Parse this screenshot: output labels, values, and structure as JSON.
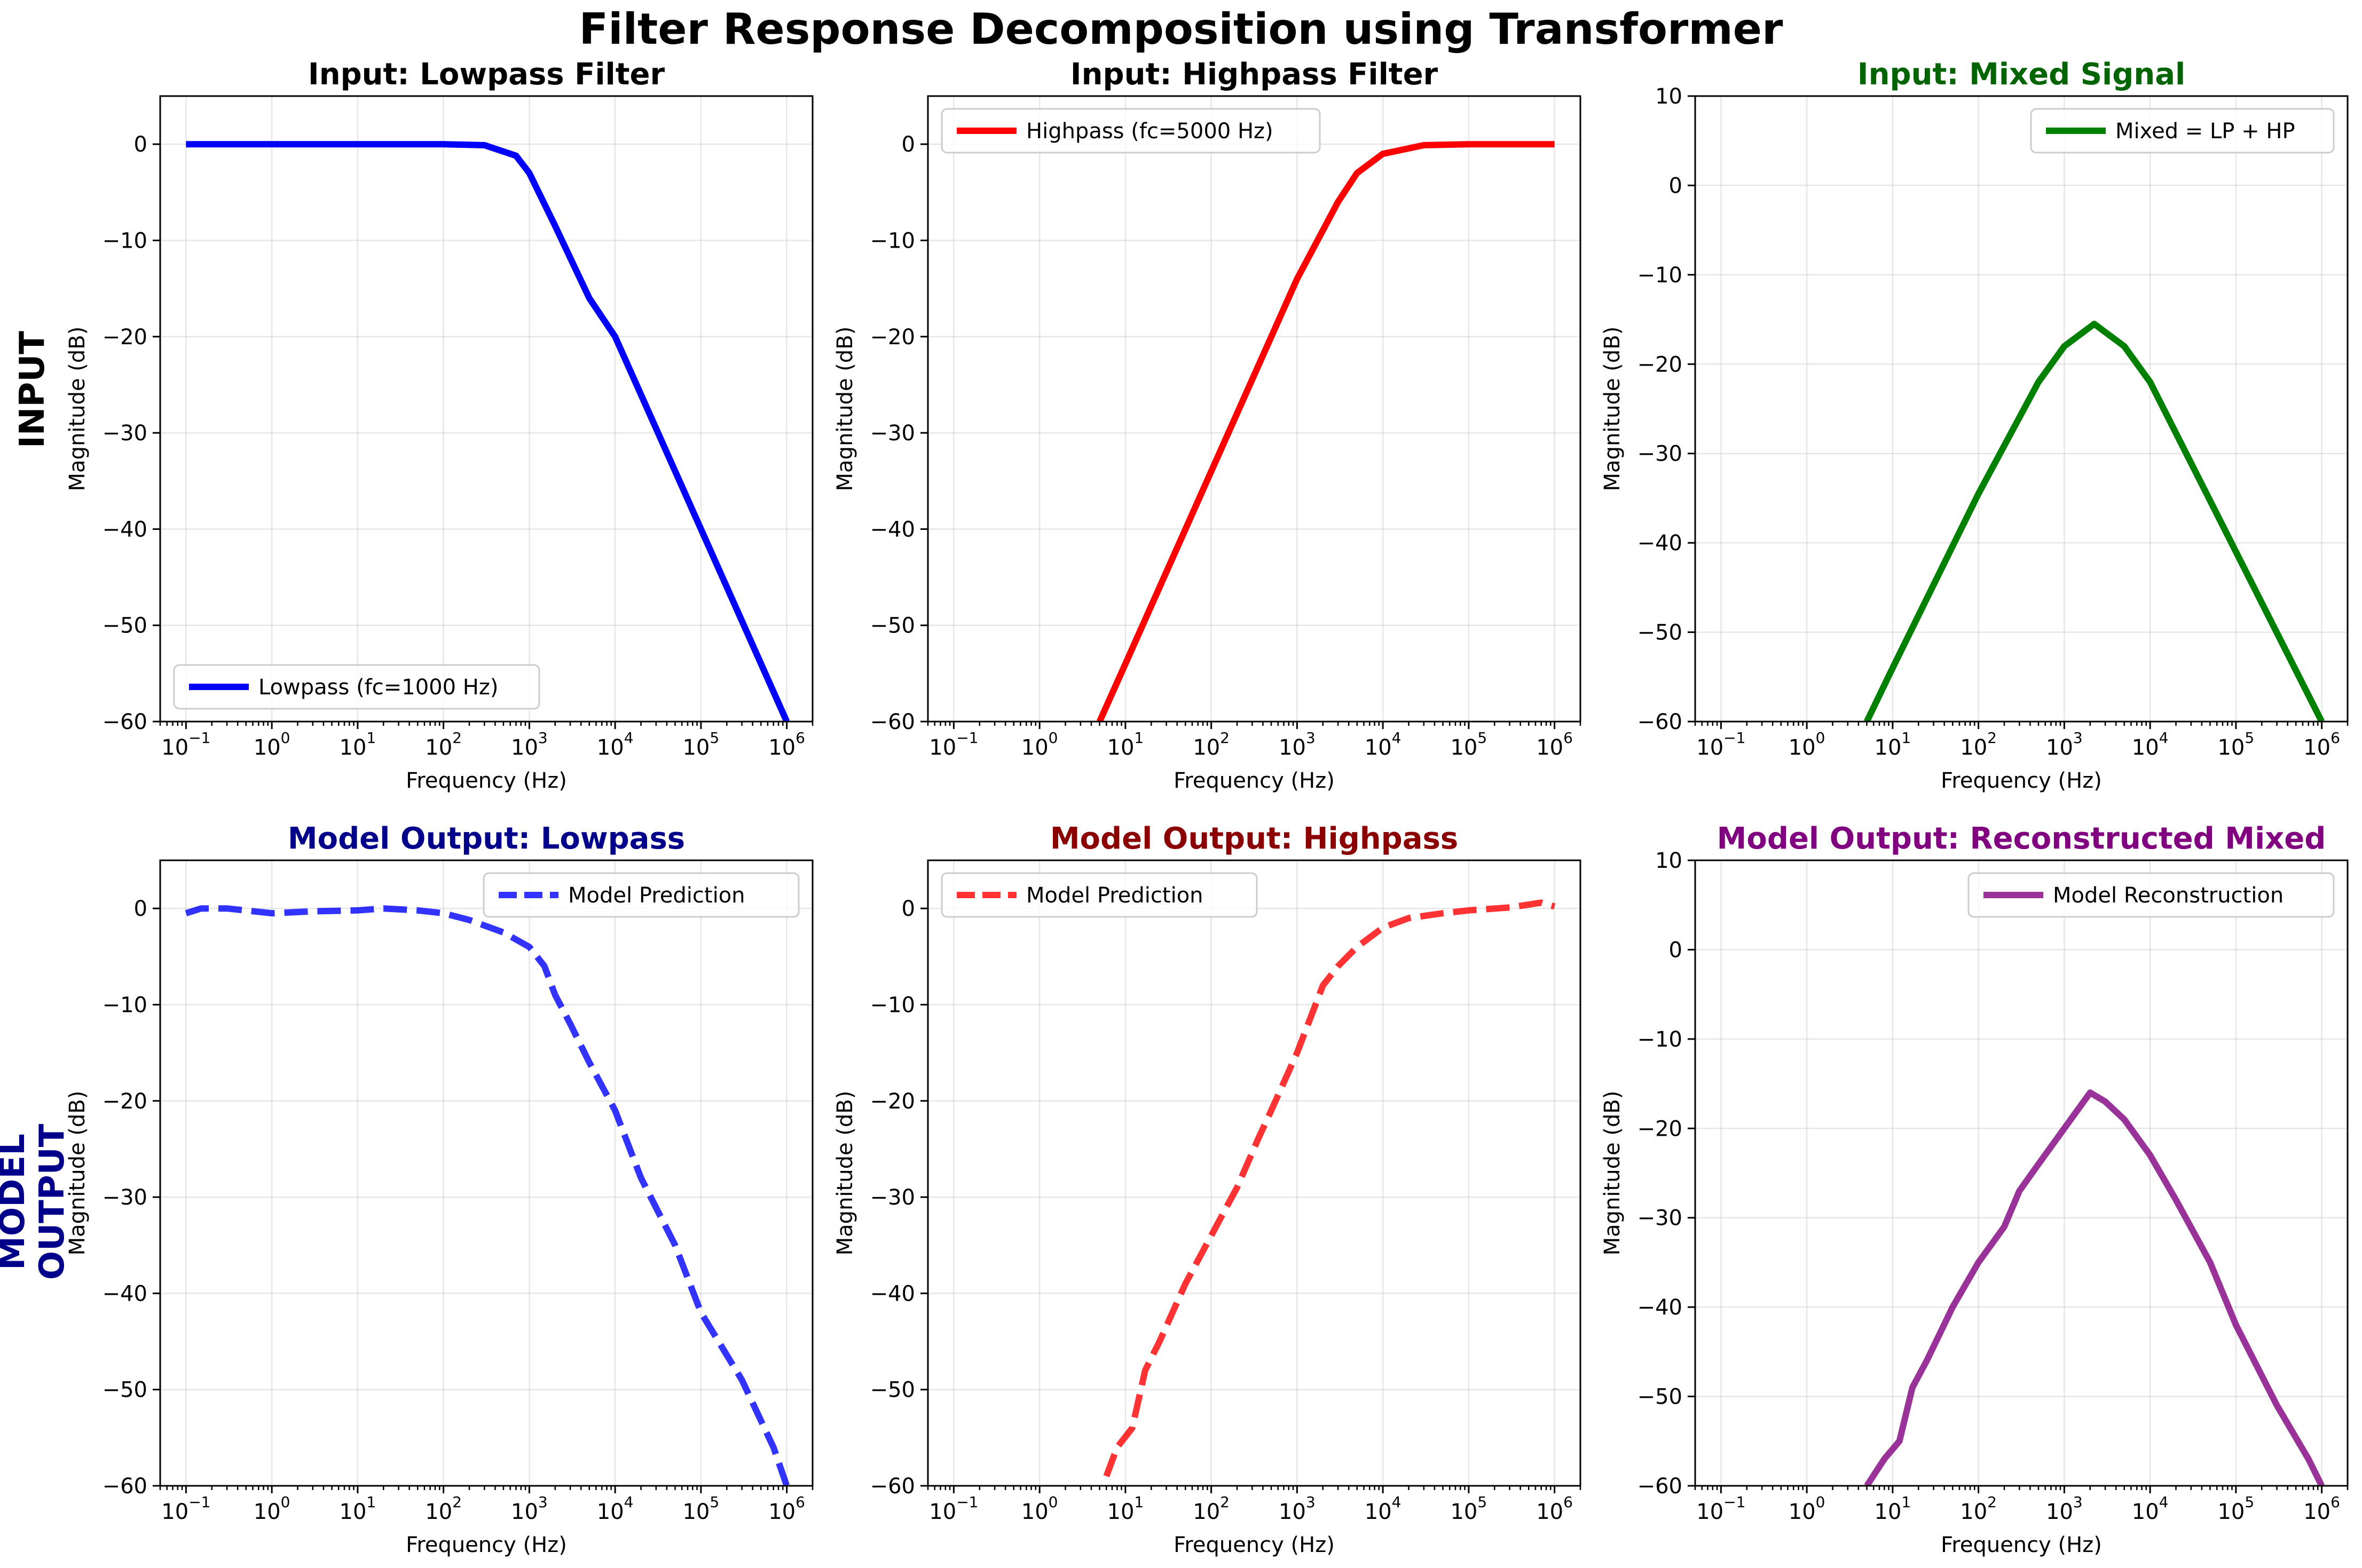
{
  "figure": {
    "title": "Filter Response Decomposition using Transformer",
    "row_labels": [
      {
        "lines": [
          "INPUT"
        ],
        "color": "#000000"
      },
      {
        "lines": [
          "MODEL",
          "OUTPUT"
        ],
        "color": "#00008b"
      }
    ]
  },
  "chart_data": [
    {
      "type": "line",
      "title": "Input: Lowpass Filter",
      "title_color": "#000000",
      "xlabel": "Frequency (Hz)",
      "ylabel": "Magnitude (dB)",
      "xscale": "log",
      "xlim": [
        0.05,
        2000000
      ],
      "ylim": [
        -60,
        5
      ],
      "xticks": [
        [
          "10",
          "−1"
        ],
        [
          "10",
          "0"
        ],
        [
          "10",
          "1"
        ],
        [
          "10",
          "2"
        ],
        [
          "10",
          "3"
        ],
        [
          "10",
          "4"
        ],
        [
          "10",
          "5"
        ],
        [
          "10",
          "6"
        ]
      ],
      "yticks": [
        "0",
        "−10",
        "−20",
        "−30",
        "−40",
        "−50",
        "−60"
      ],
      "grid": true,
      "legend_position": "lower-left",
      "series": [
        {
          "name": "Lowpass (fc=1000 Hz)",
          "color": "#0000ff",
          "style": "solid",
          "width": 12,
          "x": [
            0.1,
            1,
            10,
            100,
            300,
            700,
            1000,
            2000,
            5000,
            10000,
            100000,
            1000000
          ],
          "y": [
            0,
            0,
            0,
            0,
            -0.1,
            -1.2,
            -3,
            -8.5,
            -16,
            -20,
            -40,
            -60
          ]
        }
      ]
    },
    {
      "type": "line",
      "title": "Input: Highpass Filter",
      "title_color": "#000000",
      "xlabel": "Frequency (Hz)",
      "ylabel": "Magnitude (dB)",
      "xscale": "log",
      "xlim": [
        0.05,
        2000000
      ],
      "ylim": [
        -60,
        5
      ],
      "xticks": [
        [
          "10",
          "−1"
        ],
        [
          "10",
          "0"
        ],
        [
          "10",
          "1"
        ],
        [
          "10",
          "2"
        ],
        [
          "10",
          "3"
        ],
        [
          "10",
          "4"
        ],
        [
          "10",
          "5"
        ],
        [
          "10",
          "6"
        ]
      ],
      "yticks": [
        "0",
        "−10",
        "−20",
        "−30",
        "−40",
        "−50",
        "−60"
      ],
      "grid": true,
      "legend_position": "upper-left",
      "series": [
        {
          "name": "Highpass (fc=5000 Hz)",
          "color": "#ff0000",
          "style": "solid",
          "width": 12,
          "x": [
            5,
            10,
            100,
            1000,
            3000,
            5000,
            10000,
            30000,
            100000,
            1000000
          ],
          "y": [
            -60,
            -54,
            -34,
            -14,
            -6,
            -3,
            -1,
            -0.1,
            0,
            0
          ]
        }
      ]
    },
    {
      "type": "line",
      "title": "Input: Mixed Signal",
      "title_color": "#006400",
      "xlabel": "Frequency (Hz)",
      "ylabel": "Magnitude (dB)",
      "xscale": "log",
      "xlim": [
        0.05,
        2000000
      ],
      "ylim": [
        -60,
        10
      ],
      "xticks": [
        [
          "10",
          "−1"
        ],
        [
          "10",
          "0"
        ],
        [
          "10",
          "1"
        ],
        [
          "10",
          "2"
        ],
        [
          "10",
          "3"
        ],
        [
          "10",
          "4"
        ],
        [
          "10",
          "5"
        ],
        [
          "10",
          "6"
        ]
      ],
      "yticks": [
        "10",
        "0",
        "−10",
        "−20",
        "−30",
        "−40",
        "−50",
        "−60"
      ],
      "grid": true,
      "legend_position": "upper-right",
      "series": [
        {
          "name": "Mixed = LP + HP",
          "color": "#008000",
          "style": "solid",
          "width": 12,
          "x": [
            5,
            10,
            100,
            500,
            1000,
            2236,
            5000,
            10000,
            100000,
            1000000
          ],
          "y": [
            -60,
            -54,
            -34.5,
            -22,
            -18,
            -15.5,
            -18,
            -22,
            -41,
            -60
          ]
        }
      ]
    },
    {
      "type": "line",
      "title": "Model Output: Lowpass",
      "title_color": "#00008b",
      "xlabel": "Frequency (Hz)",
      "ylabel": "Magnitude (dB)",
      "xscale": "log",
      "xlim": [
        0.05,
        2000000
      ],
      "ylim": [
        -60,
        5
      ],
      "xticks": [
        [
          "10",
          "−1"
        ],
        [
          "10",
          "0"
        ],
        [
          "10",
          "1"
        ],
        [
          "10",
          "2"
        ],
        [
          "10",
          "3"
        ],
        [
          "10",
          "4"
        ],
        [
          "10",
          "5"
        ],
        [
          "10",
          "6"
        ]
      ],
      "yticks": [
        "0",
        "−10",
        "−20",
        "−30",
        "−40",
        "−50",
        "−60"
      ],
      "grid": true,
      "legend_position": "upper-right",
      "series": [
        {
          "name": "Model Prediction",
          "color": "#0000ff",
          "opacity": 0.8,
          "style": "dashed",
          "width": 12,
          "x": [
            0.1,
            0.15,
            0.3,
            1,
            3,
            10,
            20,
            50,
            100,
            200,
            500,
            1000,
            1500,
            2000,
            3000,
            5000,
            10000,
            20000,
            50000,
            100000,
            300000,
            700000,
            1000000
          ],
          "y": [
            -0.5,
            0,
            0,
            -0.5,
            -0.3,
            -0.2,
            0,
            -0.2,
            -0.5,
            -1.2,
            -2.5,
            -4,
            -6,
            -9,
            -12,
            -16,
            -21,
            -28,
            -35,
            -42,
            -49,
            -56,
            -60
          ]
        }
      ]
    },
    {
      "type": "line",
      "title": "Model Output: Highpass",
      "title_color": "#8b0000",
      "xlabel": "Frequency (Hz)",
      "ylabel": "Magnitude (dB)",
      "xscale": "log",
      "xlim": [
        0.05,
        2000000
      ],
      "ylim": [
        -60,
        5
      ],
      "xticks": [
        [
          "10",
          "−1"
        ],
        [
          "10",
          "0"
        ],
        [
          "10",
          "1"
        ],
        [
          "10",
          "2"
        ],
        [
          "10",
          "3"
        ],
        [
          "10",
          "4"
        ],
        [
          "10",
          "5"
        ],
        [
          "10",
          "6"
        ]
      ],
      "yticks": [
        "0",
        "−10",
        "−20",
        "−30",
        "−40",
        "−50",
        "−60"
      ],
      "grid": true,
      "legend_position": "upper-left",
      "series": [
        {
          "name": "Model Prediction",
          "color": "#ff0000",
          "opacity": 0.8,
          "style": "dashed",
          "width": 12,
          "x": [
            6,
            8,
            12,
            17,
            25,
            50,
            100,
            200,
            350,
            500,
            1000,
            2000,
            3000,
            5000,
            10000,
            20000,
            50000,
            100000,
            300000,
            700000,
            1000000
          ],
          "y": [
            -59,
            -56,
            -54,
            -48,
            -45,
            -39,
            -34,
            -29,
            -24,
            -21,
            -15,
            -8,
            -6,
            -4,
            -2,
            -1,
            -0.5,
            -0.2,
            0.1,
            0.6,
            0.2
          ]
        }
      ]
    },
    {
      "type": "line",
      "title": "Model Output: Reconstructed Mixed",
      "title_color": "#800080",
      "xlabel": "Frequency (Hz)",
      "ylabel": "Magnitude (dB)",
      "xscale": "log",
      "xlim": [
        0.05,
        2000000
      ],
      "ylim": [
        -60,
        10
      ],
      "xticks": [
        [
          "10",
          "−1"
        ],
        [
          "10",
          "0"
        ],
        [
          "10",
          "1"
        ],
        [
          "10",
          "2"
        ],
        [
          "10",
          "3"
        ],
        [
          "10",
          "4"
        ],
        [
          "10",
          "5"
        ],
        [
          "10",
          "6"
        ]
      ],
      "yticks": [
        "10",
        "0",
        "−10",
        "−20",
        "−30",
        "−40",
        "−50",
        "−60"
      ],
      "grid": true,
      "legend_position": "upper-right",
      "series": [
        {
          "name": "Model Reconstruction",
          "color": "#800080",
          "opacity": 0.8,
          "style": "solid",
          "width": 12,
          "x": [
            5,
            8,
            12,
            17,
            25,
            50,
            100,
            200,
            300,
            500,
            1000,
            2000,
            3000,
            5000,
            10000,
            20000,
            50000,
            100000,
            300000,
            700000,
            1000000
          ],
          "y": [
            -60,
            -57,
            -55,
            -49,
            -46,
            -40,
            -35,
            -31,
            -27,
            -24,
            -20,
            -16,
            -17,
            -19,
            -23,
            -28,
            -35,
            -42,
            -51,
            -57,
            -60
          ]
        }
      ]
    }
  ]
}
